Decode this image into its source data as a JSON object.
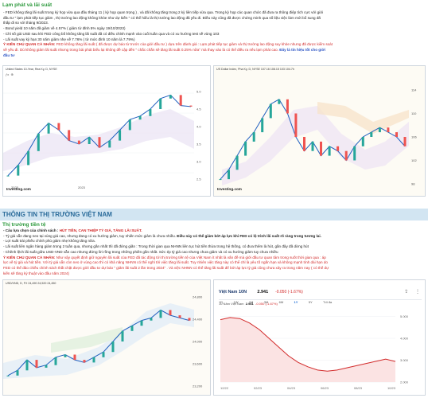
{
  "sec1": {
    "title": "Lạm phát và lãi suất",
    "lines": [
      "- FED không tăng lãi suất trong kỳ họp vừa qua đầu tháng 11 ( kỳ họp quan trọng ) , và đã không tăng trong 2 kỳ liên tiếp vừa qua. Trong kỳ họp các quan chức đã đưa ra thông điệp tích cực với giới",
      "đầu tư \" lạm phát tiếp tục giảm , thị trường lao động không khỏe như dự kiến \" có thể hiểu là thị trường lao động đã yếu đi. Điều này cũng đã được chứng minh qua số liệu việc làm mới bổ sung đã",
      "thấp đi so với tháng 9/2023.",
      "- Bond yield 10 năm đã giảm về 4.57% ( giảm từ đỉnh 5% ngày 19/10/2023)",
      "- Chỉ số giá USD sau khi FED công bố không tăng lãi suất đã có điều chỉnh mạnh vào cuối tuần qua và có xu hướng test về vùng 103",
      "- Lãi suất vay kỳ hạn 30 năm giảm nhẹ về 7.76% ( từ mức đỉnh 10 năm là 7.79%)"
    ],
    "comment_label": "Ý KIẾN CHỦ QUAN CÁ NHÂN:",
    "comment_line1": " FED không tăng lãi suất ( đã được dự báo từ trước của giới đầu tư ) dựa trên đánh giá : Lạm phát tiếp tục giảm và thị trường lao động suy khỏe nhưng đã được kiểm soát",
    "comment_line2": "về yếu đi. Dù không giảm lãi suất nhưng trong bài phát biểu lại không đề cập đến \" chắc chắn sẽ tăng lãi suất 0.25% nữa\" mà thay vào là có thể điều ra nếu lạm phát cao.",
    "comment_line2_blue": " Đây là tín hiệu tốt cho giới",
    "comment_line3": "đầu tư"
  },
  "chart1": {
    "title": "United States 10-Year, Rea Ky, D, NYSE",
    "logo": "Investing.com",
    "x_ticks": [
      "2022",
      "",
      "2023",
      "",
      "",
      ""
    ],
    "y_ticks": [
      "5.0",
      "4.5",
      "4.0",
      "3.5",
      "3.0",
      "2.5"
    ],
    "chart_data": {
      "type": "line",
      "title": "United States 10-Year, Rea Ky, D, NYSE",
      "series": [
        {
          "values": [
            2.6,
            2.9,
            3.3,
            3.8,
            4.1,
            3.9,
            3.6,
            3.5,
            3.7,
            3.4,
            3.6,
            3.9,
            4.2,
            4.3,
            4.5,
            4.8,
            4.9,
            4.6,
            4.57
          ]
        }
      ],
      "ylim": [
        2.5,
        5.0
      ]
    }
  },
  "chart2": {
    "title": "US Dollar Index, Pha Ky, D, NYSE  107.16  108.15  103  104.7h",
    "logo": "Investing.com",
    "y_ticks": [
      "114",
      "110",
      "106",
      "102",
      "98"
    ],
    "chart_data": {
      "type": "line",
      "title": "US Dollar Index, Pha Ky, D, NYSE",
      "series": [
        {
          "values": [
            96,
            98,
            101,
            104,
            106,
            109,
            112,
            113,
            110,
            105,
            102,
            104,
            101,
            103,
            102,
            100,
            103,
            105,
            106,
            107,
            106,
            105,
            103
          ]
        }
      ],
      "ylim": [
        95,
        115
      ]
    }
  },
  "sec2": {
    "bar_title": "THÔNG TIN THỊ TRƯỜNG VIỆT NAM",
    "sub_title": "Thị trường tiền tệ",
    "policy_label": "- Câu lựa chọn của chính sách :",
    "policy_red": " HÚT TIỀN, CAN THIỆP TỶ GIÁ, TĂNG LÃI SUẤT.",
    "line2a": "- Tỷ giá vẫn đang neo tại vùng giá cao, nhưng đang có xu hướng giảm, tuy nhiên mức giảm là chưa nhiều.",
    "line2b": " Điều này có thể giảm bớt áp lực khi FED có lộ trình lãi suất rõ ràng trong tương lai.",
    "line3": "- Lợi suất trái phiếu chính phủ giảm nhẹ không tăng nữa.",
    "line4": "- Lãi suất liên ngân hàng giảm trong 2 tuần qua, nhưng gần nhất thì đã đứng giãn : Trong thời gian qua NHNN liên tục hút tiền thừa trong hệ thống, có đưa thêm là hút, gần đây đã dừng hút",
    "line5": "- Chênh lệch lãi suất giữa USD-VND vẫn cao nhưng đứng lời rồng trong những phiên gần nhất. Sức ép tỷ giá cao nhưng chưa giảm và có xu hướng giảm tuy chưa nhiều",
    "comment_label": "Ý KIẾN CHỦ QUAN CÁ NHÂN:",
    "comment_line1": " Như vậy quyết định giữ nguyên lãi suất của FED đã tác động tới thị trường tiền tệ của Việt Nam ít nhất là vấn đề mà giới đầu tư quan tâm trong suốt thời gian qua : áp",
    "comment_line2": "lực về tỷ giá và hút tiền. Với tỷ giá vẫn còn neo ở vùng cao thì có khả năng NHNN có thể nghỉ tới việc tăng lãi suất. Tuy nhiên việc tăng này có thể chỉ là yêu tố ngắn hạn và không mạnh tình dài hạn do",
    "comment_line3": "FED có thể đảo chiều chính sách thắt chặt được giới đầu tư dự báo \" giảm lãi suất 2 lần trong 2024\" . Và việc NHNN có thể tăng lãi suất để bớt áp lực tỷ giá cũng chưa xảy ra trong năm nay ( có thể dự",
    "comment_line4": "kiến sẽ tăng kỳ thuật vào đầu năm 2024)"
  },
  "chart3": {
    "title": "USD/VND, D, FX  24,490  24,520  24,450",
    "y_ticks": [
      "24,800",
      "24,400",
      "24,000",
      "23,600",
      "23,200"
    ],
    "chart_data": {
      "type": "line",
      "title": "USD/VND, D, FX",
      "series": [
        {
          "values": [
            23400,
            23500,
            23700,
            23550,
            23600,
            23750,
            23800,
            23700,
            23650,
            23750,
            23850,
            24050,
            24250,
            24350,
            24450,
            24500,
            24650,
            24550,
            24500,
            24450
          ]
        }
      ],
      "ylim": [
        23200,
        24900
      ]
    }
  },
  "chart4": {
    "title": "Việt Nam 10N",
    "value": "2.941",
    "change": "-0.050 (-1.67%)",
    "subtitle": "10 Năm Việt Nam",
    "sub_value": "2.941",
    "sub_change": "-0.050 (-1.67%)",
    "tabs": [
      "1D",
      "1W",
      "1M",
      "3M",
      "6M",
      "1Y",
      "5Y",
      "Tối đa"
    ],
    "selected_tab": "1Y",
    "x_ticks": [
      "12/22",
      "02/23",
      "04/23",
      "06/23",
      "08/23",
      "10/23"
    ],
    "y_ticks": [
      "5.000",
      "4.000",
      "3.000",
      "2.000"
    ],
    "chart_data": {
      "type": "line",
      "title": "10 Năm Việt Nam",
      "series": [
        {
          "values": [
            4.85,
            4.95,
            4.9,
            4.7,
            4.4,
            4.0,
            3.6,
            3.2,
            2.9,
            2.7,
            2.55,
            2.5,
            2.55,
            2.65,
            2.75,
            2.85,
            2.95,
            3.05,
            2.941
          ]
        }
      ],
      "ylim": [
        2.0,
        5.2
      ]
    }
  },
  "colors": {
    "green_head": "#2e9a3e",
    "bar_bg": "#d2e5f2",
    "accent_red": "#d22a2a",
    "accent_blue": "#2a52c4",
    "line_blue": "#1f5fbf"
  }
}
